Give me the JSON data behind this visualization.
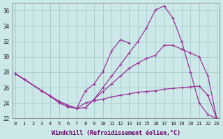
{
  "xlabel": "Windchill (Refroidissement éolien,°C)",
  "background_color": "#cce8e8",
  "grid_color": "#aacece",
  "line_color": "#993399",
  "ylim": [
    22,
    37
  ],
  "xlim_min": -0.3,
  "xlim_max": 23.3,
  "yticks": [
    22,
    24,
    26,
    28,
    30,
    32,
    34,
    36
  ],
  "xticks": [
    0,
    1,
    2,
    3,
    4,
    5,
    6,
    7,
    8,
    9,
    10,
    11,
    12,
    13,
    14,
    15,
    16,
    17,
    18,
    19,
    20,
    21,
    22,
    23
  ],
  "s1_x": [
    0,
    1,
    3,
    4,
    5,
    6,
    7,
    8,
    9,
    10,
    11,
    12,
    13,
    14,
    15,
    16,
    17,
    18,
    19,
    20,
    21,
    22,
    23
  ],
  "s1_y": [
    27.8,
    27.1,
    25.6,
    24.9,
    24.2,
    23.7,
    23.3,
    23.4,
    24.5,
    26.0,
    27.5,
    29.0,
    30.5,
    32.0,
    33.8,
    36.1,
    36.6,
    35.0,
    32.0,
    28.0,
    24.0,
    22.5,
    22.0
  ],
  "s2_x": [
    0,
    1,
    3,
    4,
    5,
    6,
    7,
    8,
    9,
    10,
    11,
    12,
    13,
    14,
    15,
    16,
    17,
    18,
    19,
    20,
    21,
    22,
    23
  ],
  "s2_y": [
    27.8,
    27.1,
    25.6,
    24.9,
    24.2,
    23.7,
    23.3,
    23.4,
    24.5,
    25.5,
    26.5,
    27.5,
    28.5,
    29.2,
    29.8,
    30.2,
    31.5,
    31.5,
    31.0,
    30.5,
    30.0,
    27.5,
    22.0
  ],
  "s3_x": [
    0,
    3,
    4,
    5,
    6,
    7,
    8,
    9,
    10,
    11,
    12,
    13
  ],
  "s3_y": [
    27.8,
    25.6,
    24.9,
    24.2,
    23.7,
    23.3,
    25.6,
    26.5,
    28.1,
    30.8,
    32.2,
    31.8
  ],
  "s4_x": [
    0,
    3,
    4,
    5,
    6,
    7,
    8,
    9,
    10,
    11,
    12,
    13,
    14,
    15,
    16,
    17,
    18,
    19,
    20,
    21,
    22,
    23
  ],
  "s4_y": [
    27.8,
    25.6,
    24.9,
    24.0,
    23.5,
    23.3,
    24.0,
    24.3,
    24.5,
    24.8,
    25.0,
    25.2,
    25.4,
    25.5,
    25.6,
    25.8,
    25.9,
    26.0,
    26.1,
    26.2,
    25.0,
    22.0
  ]
}
